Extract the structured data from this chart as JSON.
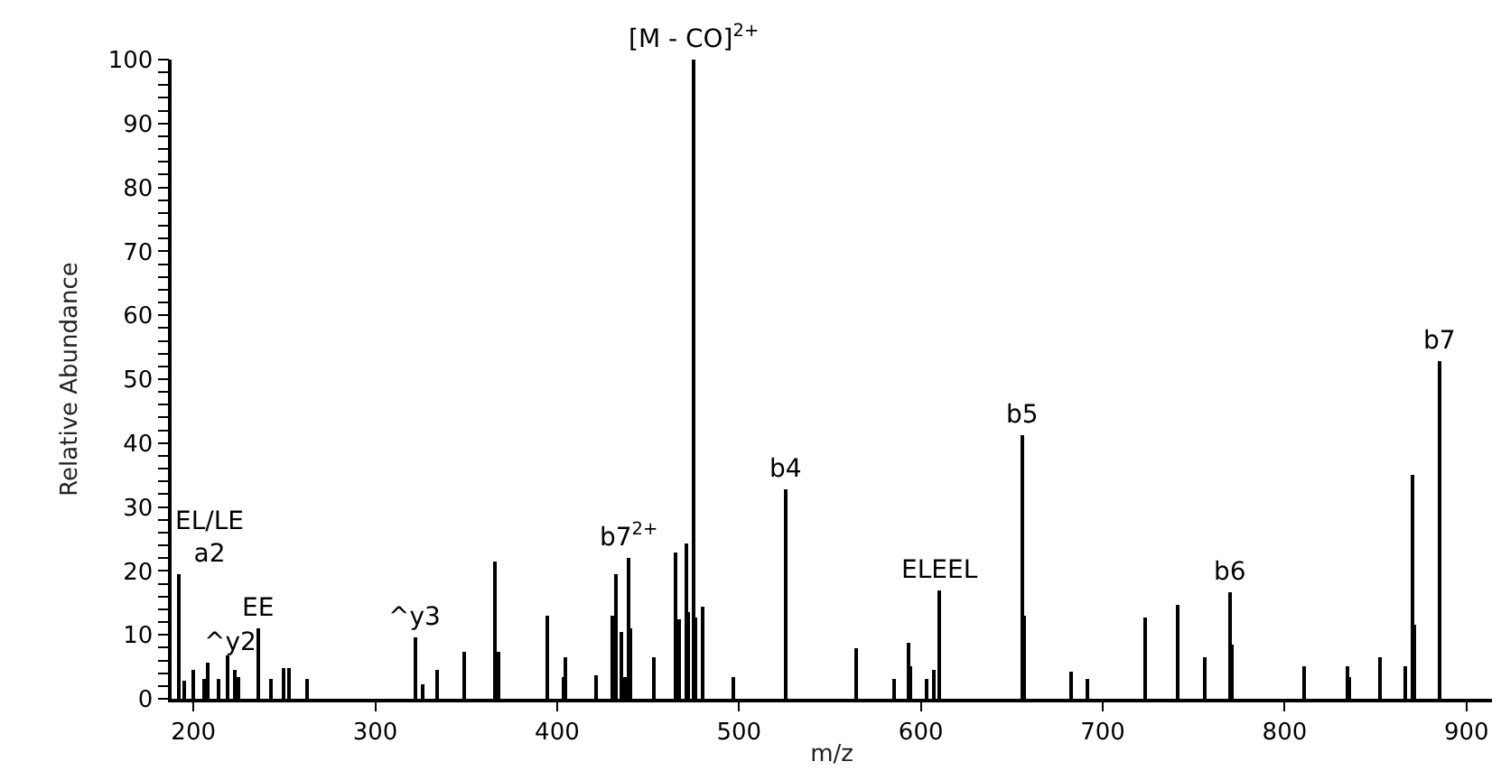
{
  "chart_data": {
    "type": "bar",
    "xlabel": "m/z",
    "ylabel": "Relative Abundance",
    "x": [
      192,
      194.6,
      200,
      205.6,
      208,
      214,
      219,
      223,
      224.5,
      235.5,
      242.6,
      250,
      253,
      263,
      322,
      326,
      334,
      349,
      366,
      367.5,
      395,
      403.5,
      405,
      421.8,
      430,
      432.7,
      435,
      437.6,
      439.6,
      440.5,
      453,
      465.3,
      466.6,
      470.6,
      472,
      475.2,
      476.5,
      480.5,
      497,
      526,
      564.7,
      585,
      593.4,
      594.5,
      603,
      607,
      610,
      655.4,
      656.7,
      682.8,
      691.4,
      723,
      741,
      756,
      770,
      771,
      811,
      835,
      836,
      852,
      866,
      870,
      871,
      885
    ],
    "values": [
      19.6,
      2.8,
      4.5,
      3.1,
      5.7,
      3.1,
      6.8,
      4.5,
      3.4,
      11,
      3.1,
      4.8,
      4.9,
      3.1,
      9.6,
      2.4,
      4.5,
      7.3,
      21.5,
      7.3,
      13.1,
      3.4,
      6.4,
      3.8,
      13.1,
      19.4,
      10.5,
      3.4,
      21.9,
      11,
      6.4,
      22.8,
      12.4,
      24.3,
      13.5,
      100,
      12.6,
      14.3,
      3.4,
      32.9,
      7.9,
      3.1,
      8.7,
      5.1,
      3.1,
      4.4,
      17,
      41.3,
      13.1,
      4.2,
      3.1,
      12.6,
      14.7,
      6.4,
      16.6,
      8.4,
      5.1,
      5.1,
      3.5,
      6.4,
      5.1,
      34.9,
      11.7,
      52.7
    ],
    "color": "#000000",
    "xlim": [
      188,
      914
    ],
    "xticks": [
      200,
      300,
      400,
      500,
      600,
      700,
      800,
      900
    ],
    "ylim": [
      0,
      100
    ],
    "yticks": [
      0,
      {
        "value": 2,
        "label": null
      },
      {
        "value": 4,
        "label": null
      },
      {
        "value": 6,
        "label": null
      },
      {
        "value": 8,
        "label": null
      },
      10,
      {
        "value": 12,
        "label": null
      },
      {
        "value": 14,
        "label": null
      },
      {
        "value": 16,
        "label": null
      },
      {
        "value": 18,
        "label": null
      },
      20,
      {
        "value": 22,
        "label": null
      },
      {
        "value": 24,
        "label": null
      },
      {
        "value": 26,
        "label": null
      },
      {
        "value": 28,
        "label": null
      },
      30,
      {
        "value": 32,
        "label": null
      },
      {
        "value": 34,
        "label": null
      },
      {
        "value": 36,
        "label": null
      },
      {
        "value": 38,
        "label": null
      },
      40,
      {
        "value": 42,
        "label": null
      },
      {
        "value": 44,
        "label": null
      },
      {
        "value": 46,
        "label": null
      },
      {
        "value": 48,
        "label": null
      },
      50,
      {
        "value": 52,
        "label": null
      },
      {
        "value": 54,
        "label": null
      },
      {
        "value": 56,
        "label": null
      },
      {
        "value": 58,
        "label": null
      },
      60,
      {
        "value": 62,
        "label": null
      },
      {
        "value": 64,
        "label": null
      },
      {
        "value": 66,
        "label": null
      },
      {
        "value": 68,
        "label": null
      },
      70,
      {
        "value": 72,
        "label": null
      },
      {
        "value": 74,
        "label": null
      },
      {
        "value": 76,
        "label": null
      },
      {
        "value": 78,
        "label": null
      },
      80,
      {
        "value": 82,
        "label": null
      },
      {
        "value": 84,
        "label": null
      },
      {
        "value": 86,
        "label": null
      },
      {
        "value": 88,
        "label": null
      },
      90,
      {
        "value": 92,
        "label": null
      },
      {
        "value": 94,
        "label": null
      },
      {
        "value": 96,
        "label": null
      },
      {
        "value": 98,
        "label": null
      },
      100
    ],
    "annotations": [
      {
        "text": "EL/LE\na2",
        "x": 192,
        "y": 19.6
      },
      {
        "text": "^y2",
        "x": 208,
        "y": 5.7
      },
      {
        "text": "EE",
        "x": 235.5,
        "y": 11
      },
      {
        "text": "^y3",
        "x": 322,
        "y": 9.6
      },
      {
        "text": "b7$^{2+}$",
        "x": 439.6,
        "y": 21.9
      },
      {
        "text": "[M - CO]$^{2+}$",
        "x": 475.2,
        "y": 100
      },
      {
        "text": "b4",
        "x": 526,
        "y": 32.9
      },
      {
        "text": "ELEEL",
        "x": 610,
        "y": 17
      },
      {
        "text": "b5",
        "x": 655.4,
        "y": 41.3
      },
      {
        "text": "b6",
        "x": 770,
        "y": 16.6
      },
      {
        "text": "b7",
        "x": 885,
        "y": 52.7
      }
    ]
  }
}
